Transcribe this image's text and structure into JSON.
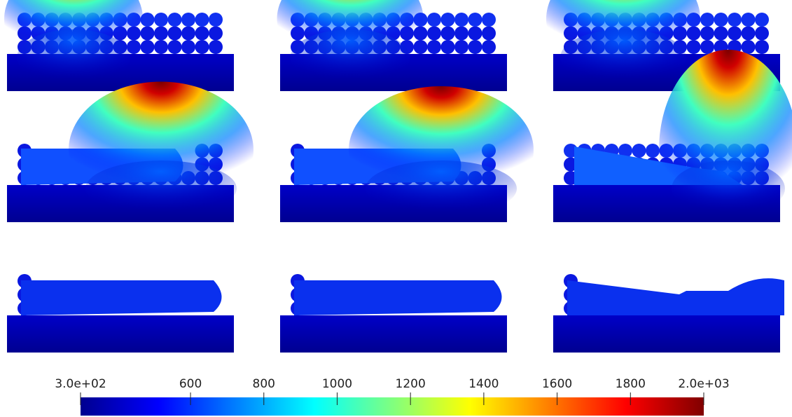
{
  "colorbar": {
    "lim": [
      300,
      2000
    ],
    "ticks": [
      {
        "value": 300,
        "label": "3.0e+02"
      },
      600,
      800,
      1000,
      1200,
      1400,
      1600,
      1800,
      {
        "value": 2000,
        "label": "2.0e+03"
      }
    ]
  }
}
